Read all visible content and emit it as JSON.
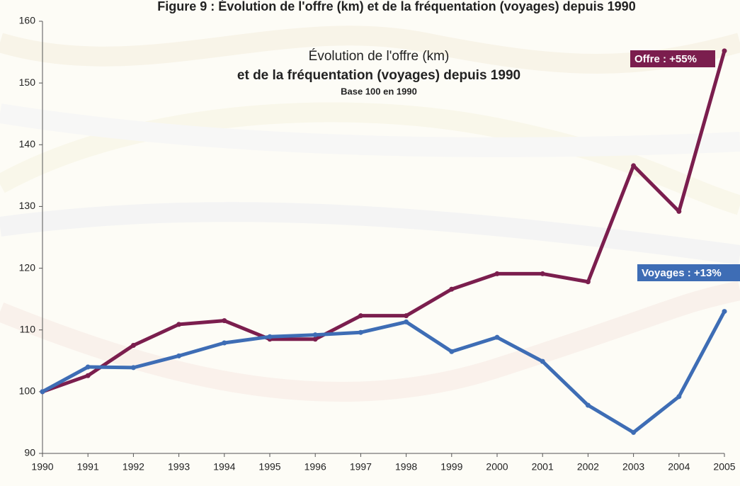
{
  "chart_data": {
    "type": "line",
    "figure_title": "Figure 9 : Évolution de l'offre (km) et de la fréquentation (voyages) depuis 1990",
    "title": "Évolution de l'offre (km)",
    "title_line2": "et de la fréquentation (voyages) depuis 1990",
    "subtitle": "Base 100 en 1990",
    "annotations": [
      "Offre : +55%",
      "Voyages : +13%"
    ],
    "x": [
      1990,
      1991,
      1992,
      1993,
      1994,
      1995,
      1996,
      1997,
      1998,
      1999,
      2000,
      2001,
      2002,
      2003,
      2004,
      2005
    ],
    "series": [
      {
        "name": "Offre",
        "color": "#7b1e4e",
        "values": [
          100,
          102.6,
          107.5,
          110.9,
          111.5,
          108.5,
          108.5,
          112.3,
          112.3,
          116.6,
          119.1,
          119.1,
          117.8,
          136.6,
          129.2,
          155.2
        ]
      },
      {
        "name": "Voyages",
        "color": "#3e6db5",
        "values": [
          100,
          104,
          103.9,
          105.8,
          107.9,
          108.9,
          109.2,
          109.6,
          111.3,
          106.5,
          108.8,
          104.9,
          97.8,
          93.4,
          99.2,
          113
        ]
      }
    ],
    "xlim": [
      1990,
      2005
    ],
    "xticks": [
      1990,
      1991,
      1992,
      1993,
      1994,
      1995,
      1996,
      1997,
      1998,
      1999,
      2000,
      2001,
      2002,
      2003,
      2004,
      2005
    ],
    "ylim": [
      90,
      160
    ],
    "yticks": [
      90,
      100,
      110,
      120,
      130,
      140,
      150,
      160
    ],
    "grid": false
  }
}
